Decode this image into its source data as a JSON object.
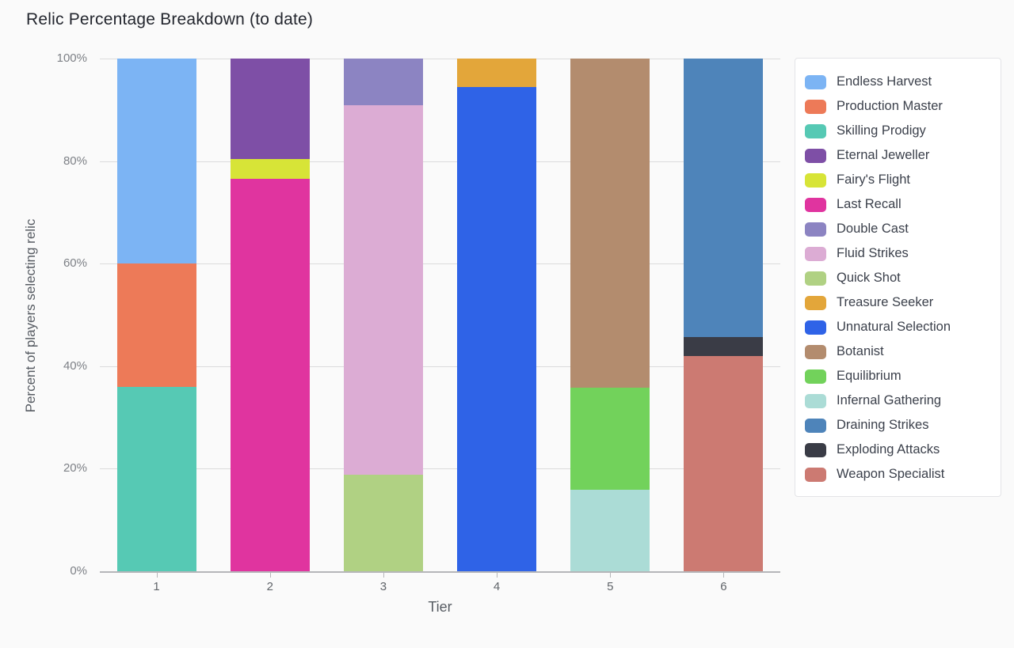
{
  "title": "Relic Percentage Breakdown (to date)",
  "chart_data": {
    "type": "bar",
    "stacked": true,
    "title": "Relic Percentage Breakdown (to date)",
    "xlabel": "Tier",
    "ylabel": "Percent of players selecting relic",
    "categories": [
      "1",
      "2",
      "3",
      "4",
      "5",
      "6"
    ],
    "ylim": [
      0,
      100
    ],
    "yticks": [
      0,
      20,
      40,
      60,
      80,
      100
    ],
    "ytick_labels": [
      "0%",
      "20%",
      "40%",
      "60%",
      "80%",
      "100%"
    ],
    "grid": true,
    "legend_position": "right",
    "series": [
      {
        "name": "Endless Harvest",
        "color": "#7CB4F4",
        "values": [
          40,
          0,
          0,
          0,
          0,
          0
        ]
      },
      {
        "name": "Production Master",
        "color": "#ED7A58",
        "values": [
          24,
          0,
          0,
          0,
          0,
          0
        ]
      },
      {
        "name": "Skilling Prodigy",
        "color": "#56C9B4",
        "values": [
          36,
          0,
          0,
          0,
          0,
          0
        ]
      },
      {
        "name": "Eternal Jeweller",
        "color": "#7E4FA6",
        "values": [
          0,
          19.6,
          0,
          0,
          0,
          0
        ]
      },
      {
        "name": "Fairy's Flight",
        "color": "#D7E437",
        "values": [
          0,
          3.9,
          0,
          0,
          0,
          0
        ]
      },
      {
        "name": "Last Recall",
        "color": "#E0349F",
        "values": [
          0,
          76.5,
          0,
          0,
          0,
          0
        ]
      },
      {
        "name": "Double Cast",
        "color": "#8C84C2",
        "values": [
          0,
          0,
          9.1,
          0,
          0,
          0
        ]
      },
      {
        "name": "Fluid Strikes",
        "color": "#DCACD4",
        "values": [
          0,
          0,
          72.1,
          0,
          0,
          0
        ]
      },
      {
        "name": "Quick Shot",
        "color": "#B0D183",
        "values": [
          0,
          0,
          18.8,
          0,
          0,
          0
        ]
      },
      {
        "name": "Treasure Seeker",
        "color": "#E3A63A",
        "values": [
          0,
          0,
          0,
          5.6,
          0,
          0
        ]
      },
      {
        "name": "Unnatural Selection",
        "color": "#2F63E7",
        "values": [
          0,
          0,
          0,
          94.4,
          0,
          0
        ]
      },
      {
        "name": "Botanist",
        "color": "#B38C6E",
        "values": [
          0,
          0,
          0,
          0,
          64.2,
          0
        ]
      },
      {
        "name": "Equilibrium",
        "color": "#72D25B",
        "values": [
          0,
          0,
          0,
          0,
          19.9,
          0
        ]
      },
      {
        "name": "Infernal Gathering",
        "color": "#ABDCD6",
        "values": [
          0,
          0,
          0,
          0,
          15.9,
          0
        ]
      },
      {
        "name": "Draining Strikes",
        "color": "#4E84BA",
        "values": [
          0,
          0,
          0,
          0,
          0,
          54.3
        ]
      },
      {
        "name": "Exploding Attacks",
        "color": "#3A3C46",
        "values": [
          0,
          0,
          0,
          0,
          0,
          3.7
        ]
      },
      {
        "name": "Weapon Specialist",
        "color": "#CC7A72",
        "values": [
          0,
          0,
          0,
          0,
          0,
          42
        ]
      }
    ]
  },
  "colors": {
    "background": "#FAFAFA",
    "gridline": "#DBDBDC",
    "axis_line": "#B5B6B9",
    "tick_label": "#7D8086",
    "axis_title": "#565B62",
    "legend_text": "#3B404B",
    "legend_border": "#E3E4E7"
  }
}
